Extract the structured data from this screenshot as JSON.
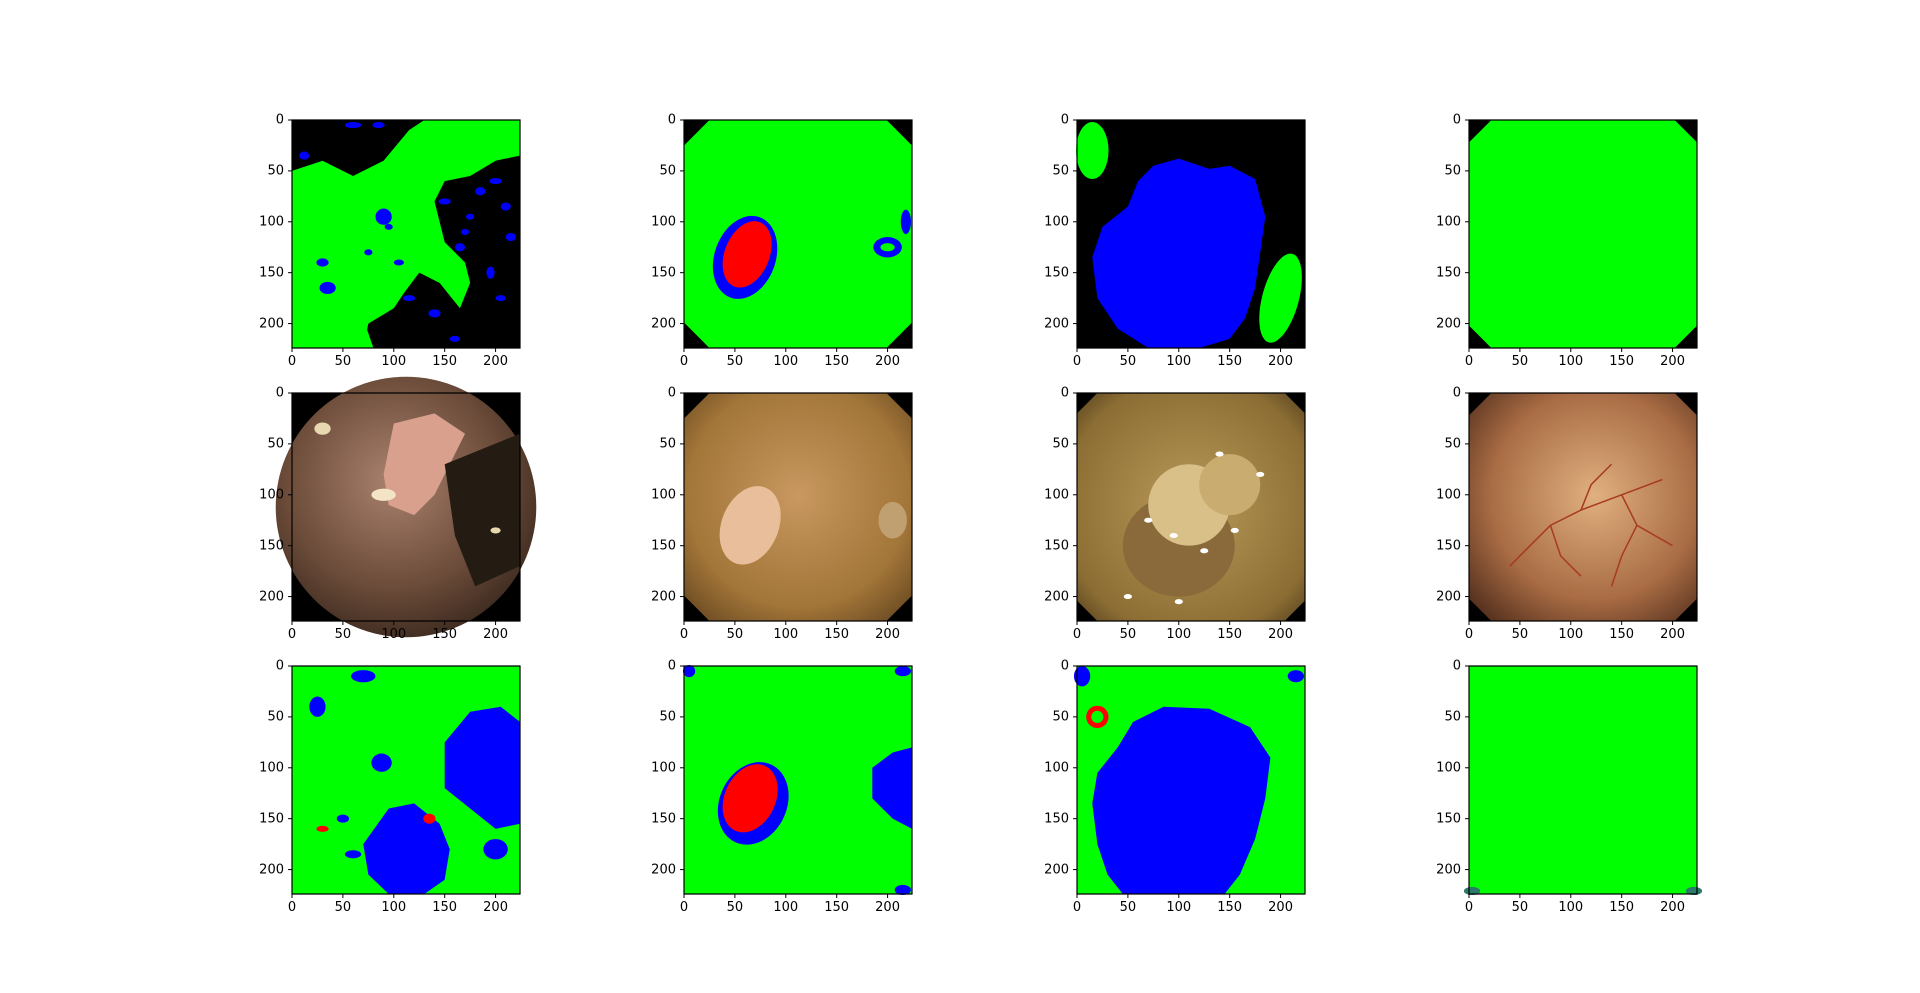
{
  "figure": {
    "rows": 3,
    "cols": 4,
    "row_kinds": [
      "ground-truth-mask",
      "endoscopy-image",
      "predicted-mask"
    ]
  },
  "colors": {
    "green": "#00ff00",
    "blue": "#0000ff",
    "red": "#ff0000",
    "black": "#000000"
  },
  "chart_data": [
    {
      "type": "heatmap",
      "row": 0,
      "col": 0,
      "xlim": [
        0,
        224
      ],
      "ylim": [
        224,
        0
      ],
      "xticks": [
        "0",
        "50",
        "100",
        "150",
        "200"
      ],
      "yticks": [
        "0",
        "50",
        "100",
        "150",
        "200"
      ],
      "content": "mask-green-tissue-blue-spots-black-bg"
    },
    {
      "type": "heatmap",
      "row": 0,
      "col": 1,
      "xlim": [
        0,
        224
      ],
      "ylim": [
        224,
        0
      ],
      "xticks": [
        "0",
        "50",
        "100",
        "150",
        "200"
      ],
      "yticks": [
        "0",
        "50",
        "100",
        "150",
        "200"
      ],
      "content": "mask-green-red-lesion-blue-ring"
    },
    {
      "type": "heatmap",
      "row": 0,
      "col": 2,
      "xlim": [
        0,
        224
      ],
      "ylim": [
        224,
        0
      ],
      "xticks": [
        "0",
        "50",
        "100",
        "150",
        "200"
      ],
      "yticks": [
        "0",
        "50",
        "100",
        "150",
        "200"
      ],
      "content": "mask-large-blue-region"
    },
    {
      "type": "heatmap",
      "row": 0,
      "col": 3,
      "xlim": [
        0,
        224
      ],
      "ylim": [
        224,
        0
      ],
      "xticks": [
        "0",
        "50",
        "100",
        "150",
        "200"
      ],
      "yticks": [
        "0",
        "50",
        "100",
        "150",
        "200"
      ],
      "content": "mask-all-green"
    },
    {
      "type": "heatmap",
      "row": 1,
      "col": 0,
      "xlim": [
        0,
        224
      ],
      "ylim": [
        224,
        0
      ],
      "xticks": [
        "0",
        "50",
        "100",
        "150",
        "200"
      ],
      "yticks": [
        "0",
        "50",
        "100",
        "150",
        "200"
      ],
      "content": "endoscopy-dark-mucosa"
    },
    {
      "type": "heatmap",
      "row": 1,
      "col": 1,
      "xlim": [
        0,
        224
      ],
      "ylim": [
        224,
        0
      ],
      "xticks": [
        "0",
        "50",
        "100",
        "150",
        "200"
      ],
      "yticks": [
        "0",
        "50",
        "100",
        "150",
        "200"
      ],
      "content": "endoscopy-pale-lesion"
    },
    {
      "type": "heatmap",
      "row": 1,
      "col": 2,
      "xlim": [
        0,
        224
      ],
      "ylim": [
        224,
        0
      ],
      "xticks": [
        "0",
        "50",
        "100",
        "150",
        "200"
      ],
      "yticks": [
        "0",
        "50",
        "100",
        "150",
        "200"
      ],
      "content": "endoscopy-bubbles"
    },
    {
      "type": "heatmap",
      "row": 1,
      "col": 3,
      "xlim": [
        0,
        224
      ],
      "ylim": [
        224,
        0
      ],
      "xticks": [
        "0",
        "50",
        "100",
        "150",
        "200"
      ],
      "yticks": [
        "0",
        "50",
        "100",
        "150",
        "200"
      ],
      "content": "endoscopy-vessels"
    },
    {
      "type": "heatmap",
      "row": 2,
      "col": 0,
      "xlim": [
        0,
        224
      ],
      "ylim": [
        224,
        0
      ],
      "xticks": [
        "0",
        "50",
        "100",
        "150",
        "200"
      ],
      "yticks": [
        "0",
        "50",
        "100",
        "150",
        "200"
      ],
      "content": "pred-green-blue-patches"
    },
    {
      "type": "heatmap",
      "row": 2,
      "col": 1,
      "xlim": [
        0,
        224
      ],
      "ylim": [
        224,
        0
      ],
      "xticks": [
        "0",
        "50",
        "100",
        "150",
        "200"
      ],
      "yticks": [
        "0",
        "50",
        "100",
        "150",
        "200"
      ],
      "content": "pred-red-lesion"
    },
    {
      "type": "heatmap",
      "row": 2,
      "col": 2,
      "xlim": [
        0,
        224
      ],
      "ylim": [
        224,
        0
      ],
      "xticks": [
        "0",
        "50",
        "100",
        "150",
        "200"
      ],
      "yticks": [
        "0",
        "50",
        "100",
        "150",
        "200"
      ],
      "content": "pred-large-blue"
    },
    {
      "type": "heatmap",
      "row": 2,
      "col": 3,
      "xlim": [
        0,
        224
      ],
      "ylim": [
        224,
        0
      ],
      "xticks": [
        "0",
        "50",
        "100",
        "150",
        "200"
      ],
      "yticks": [
        "0",
        "50",
        "100",
        "150",
        "200"
      ],
      "content": "pred-all-green"
    }
  ]
}
